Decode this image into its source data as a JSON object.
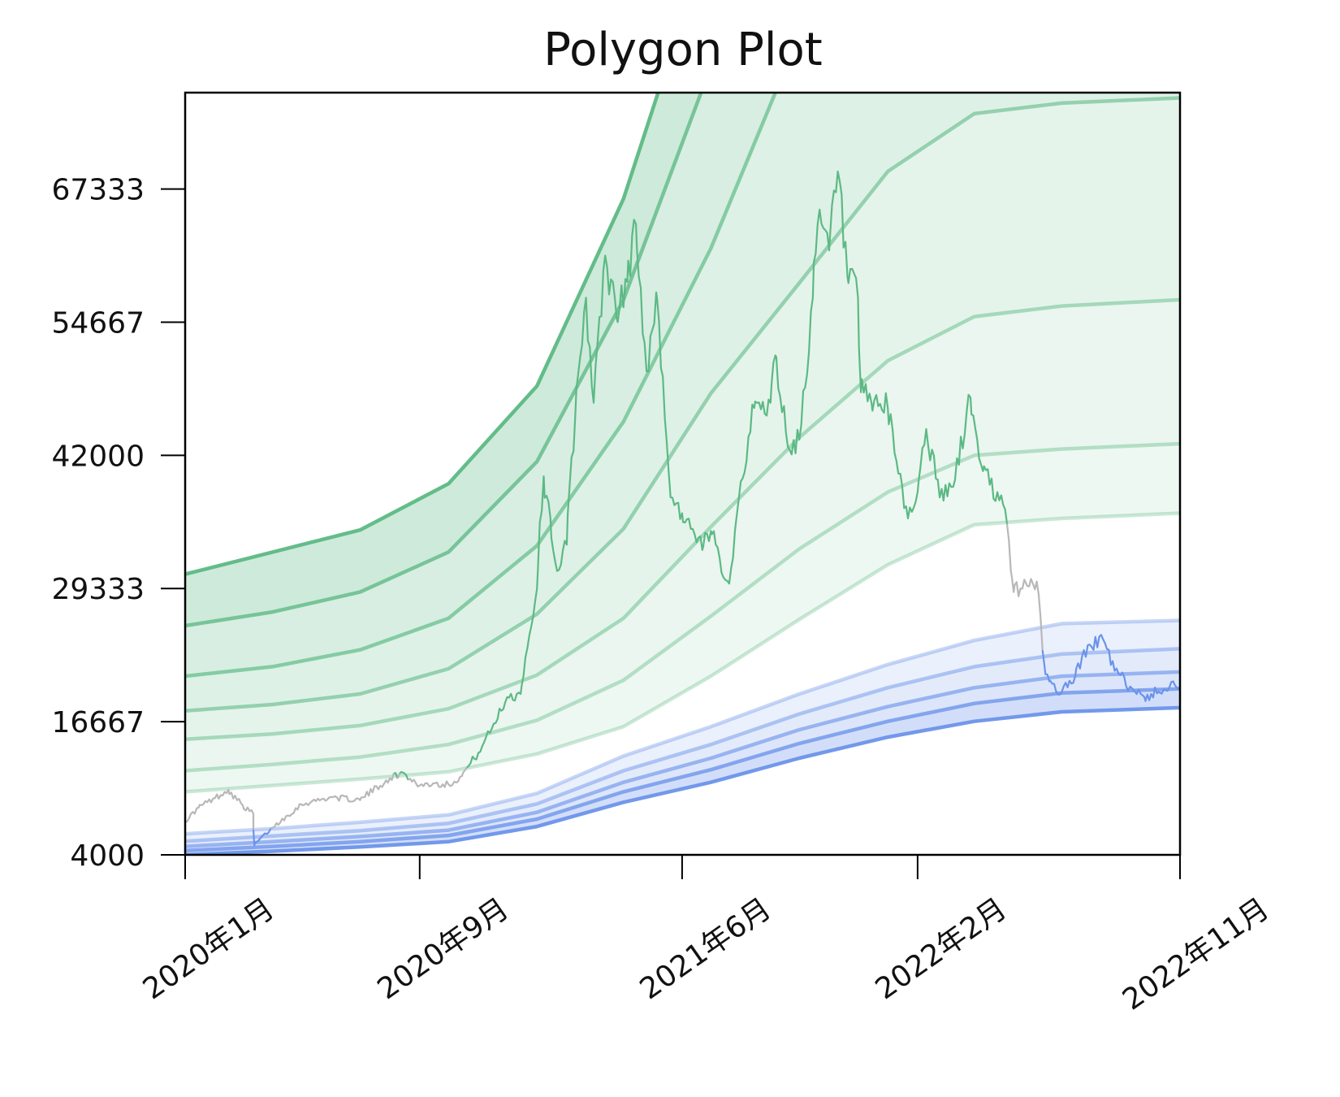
{
  "chart_data": {
    "type": "area",
    "title": "Polygon Plot",
    "xlabel": "",
    "ylabel": "",
    "x_ticks": [
      "2020-01-01",
      "2020-09-01",
      "2021-06-01",
      "2022-02-01",
      "2022-11-01"
    ],
    "x_tick_labels": [
      "2020年1月",
      "2020年9月",
      "2021年6月",
      "2022年2月",
      "2022年11月"
    ],
    "y_ticks": [
      4000,
      16667,
      29333,
      42000,
      54667,
      67333
    ],
    "y_tick_labels": [
      "4000",
      "16667",
      "29333",
      "42000",
      "54667",
      "67333"
    ],
    "xlim": [
      "2020-01-01",
      "2022-11-01"
    ],
    "ylim": [
      4000,
      76500
    ],
    "grid": false,
    "colors": {
      "price_neutral": "#b8b8b8",
      "price_green": "#5cb984",
      "price_blue": "#6b93ea",
      "green_band": "#5cb984",
      "blue_band": "#6b93ea"
    },
    "band_dates": [
      "2020-01-01",
      "2020-04-01",
      "2020-07-01",
      "2020-10-01",
      "2021-01-01",
      "2021-04-01",
      "2021-07-01",
      "2021-10-01",
      "2022-01-01",
      "2022-04-01",
      "2022-07-01",
      "2022-11-01"
    ],
    "green_bands": [
      {
        "name": "g1",
        "values": [
          10000,
          10600,
          11200,
          11900,
          13600,
          16200,
          21000,
          26400,
          31600,
          35400,
          36000,
          36500
        ]
      },
      {
        "name": "g2",
        "values": [
          12000,
          12600,
          13300,
          14500,
          16800,
          20600,
          26700,
          33100,
          38500,
          42000,
          42600,
          43100
        ]
      },
      {
        "name": "g3",
        "values": [
          15000,
          15500,
          16300,
          17900,
          21100,
          26500,
          35200,
          43700,
          51000,
          55200,
          56200,
          56800
        ]
      },
      {
        "name": "g4",
        "values": [
          17700,
          18300,
          19300,
          21700,
          26900,
          35000,
          47900,
          58400,
          69000,
          74500,
          75500,
          76000
        ]
      },
      {
        "name": "g5",
        "values": [
          21000,
          21900,
          23500,
          26500,
          33400,
          45200,
          61700,
          82000,
          100000,
          110000,
          114000,
          116000
        ]
      },
      {
        "name": "g6",
        "values": [
          25800,
          27100,
          29000,
          32800,
          41400,
          56800,
          79000,
          105000,
          130000,
          145000,
          150000,
          152000
        ]
      },
      {
        "name": "g7",
        "values": [
          30700,
          32800,
          34900,
          39300,
          48600,
          66400,
          91900,
          125000,
          155000,
          175000,
          180000,
          183000
        ]
      }
    ],
    "blue_bands": [
      {
        "name": "b1",
        "values": [
          4000,
          4350,
          4750,
          5250,
          6700,
          9000,
          10900,
          13200,
          15200,
          16700,
          17600,
          18000
        ]
      },
      {
        "name": "b2",
        "values": [
          4400,
          4800,
          5250,
          5850,
          7400,
          10000,
          12100,
          14600,
          16700,
          18400,
          19400,
          19800
        ]
      },
      {
        "name": "b3",
        "values": [
          4800,
          5250,
          5750,
          6350,
          8050,
          10900,
          13200,
          15900,
          18100,
          19900,
          21000,
          21400
        ]
      },
      {
        "name": "b4",
        "values": [
          5300,
          5800,
          6300,
          7000,
          8850,
          12000,
          14500,
          17400,
          19900,
          21900,
          23100,
          23600
        ]
      },
      {
        "name": "b5",
        "values": [
          6000,
          6500,
          7100,
          7800,
          9850,
          13400,
          16200,
          19300,
          22100,
          24400,
          26000,
          26300
        ]
      }
    ],
    "price_series": {
      "name": "price",
      "dates": [
        "2020-01-01",
        "2020-01-15",
        "2020-02-01",
        "2020-02-15",
        "2020-03-01",
        "2020-03-12",
        "2020-03-13",
        "2020-04-01",
        "2020-05-01",
        "2020-06-01",
        "2020-07-01",
        "2020-08-01",
        "2020-08-15",
        "2020-09-01",
        "2020-09-15",
        "2020-10-01",
        "2020-10-15",
        "2020-11-01",
        "2020-11-15",
        "2020-12-01",
        "2020-12-15",
        "2021-01-01",
        "2021-01-08",
        "2021-01-15",
        "2021-01-22",
        "2021-02-01",
        "2021-02-10",
        "2021-02-21",
        "2021-03-01",
        "2021-03-13",
        "2021-03-25",
        "2021-04-05",
        "2021-04-14",
        "2021-04-25",
        "2021-05-05",
        "2021-05-12",
        "2021-05-20",
        "2021-06-01",
        "2021-06-10",
        "2021-06-22",
        "2021-07-01",
        "2021-07-20",
        "2021-08-01",
        "2021-08-15",
        "2021-09-01",
        "2021-09-06",
        "2021-09-21",
        "2021-10-01",
        "2021-10-15",
        "2021-10-20",
        "2021-11-01",
        "2021-11-10",
        "2021-11-20",
        "2021-12-01",
        "2021-12-04",
        "2021-12-15",
        "2022-01-01",
        "2022-01-22",
        "2022-02-01",
        "2022-02-10",
        "2022-02-24",
        "2022-03-10",
        "2022-03-28",
        "2022-04-10",
        "2022-04-25",
        "2022-05-05",
        "2022-05-09",
        "2022-05-12",
        "2022-05-25",
        "2022-06-05",
        "2022-06-13",
        "2022-06-18",
        "2022-07-01",
        "2022-07-15",
        "2022-07-30",
        "2022-08-13",
        "2022-08-25",
        "2022-09-10",
        "2022-09-25",
        "2022-10-10",
        "2022-10-25",
        "2022-11-01"
      ],
      "values": [
        7200,
        8500,
        9400,
        10200,
        8700,
        7900,
        4900,
        6600,
        8800,
        9500,
        9200,
        11300,
        11800,
        10600,
        10800,
        10700,
        11500,
        13700,
        16000,
        19000,
        19300,
        29300,
        40000,
        36000,
        31000,
        33500,
        46000,
        57000,
        47000,
        61000,
        55000,
        58500,
        64000,
        50000,
        57500,
        49500,
        38000,
        36500,
        35000,
        33000,
        34800,
        29800,
        39500,
        46500,
        47000,
        51500,
        42500,
        43500,
        57000,
        64000,
        61500,
        69000,
        59000,
        57000,
        48000,
        47000,
        46500,
        36000,
        38500,
        44500,
        38000,
        39000,
        47500,
        40500,
        38500,
        35500,
        31000,
        29000,
        29800,
        30000,
        22000,
        20500,
        19500,
        21000,
        24000,
        24500,
        21500,
        20000,
        19000,
        19500,
        20500,
        20000
      ]
    }
  }
}
